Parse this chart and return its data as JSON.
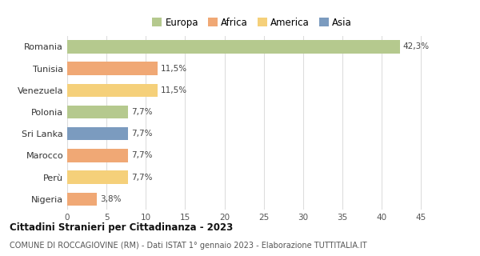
{
  "countries": [
    "Romania",
    "Tunisia",
    "Venezuela",
    "Polonia",
    "Sri Lanka",
    "Marocco",
    "Perù",
    "Nigeria"
  ],
  "values": [
    42.3,
    11.5,
    11.5,
    7.7,
    7.7,
    7.7,
    7.7,
    3.8
  ],
  "labels": [
    "42,3%",
    "11,5%",
    "11,5%",
    "7,7%",
    "7,7%",
    "7,7%",
    "7,7%",
    "3,8%"
  ],
  "colors": [
    "#b5c98e",
    "#f0a875",
    "#f5d07a",
    "#b5c98e",
    "#7b9bbf",
    "#f0a875",
    "#f5d07a",
    "#f0a875"
  ],
  "legend_labels": [
    "Europa",
    "Africa",
    "America",
    "Asia"
  ],
  "legend_colors": [
    "#b5c98e",
    "#f0a875",
    "#f5d07a",
    "#7b9bbf"
  ],
  "title": "Cittadini Stranieri per Cittadinanza - 2023",
  "subtitle": "COMUNE DI ROCCAGIOVINE (RM) - Dati ISTAT 1° gennaio 2023 - Elaborazione TUTTITALIA.IT",
  "xlim": [
    0,
    47
  ],
  "xticks": [
    0,
    5,
    10,
    15,
    20,
    25,
    30,
    35,
    40,
    45
  ],
  "background_color": "#ffffff",
  "grid_color": "#dddddd"
}
